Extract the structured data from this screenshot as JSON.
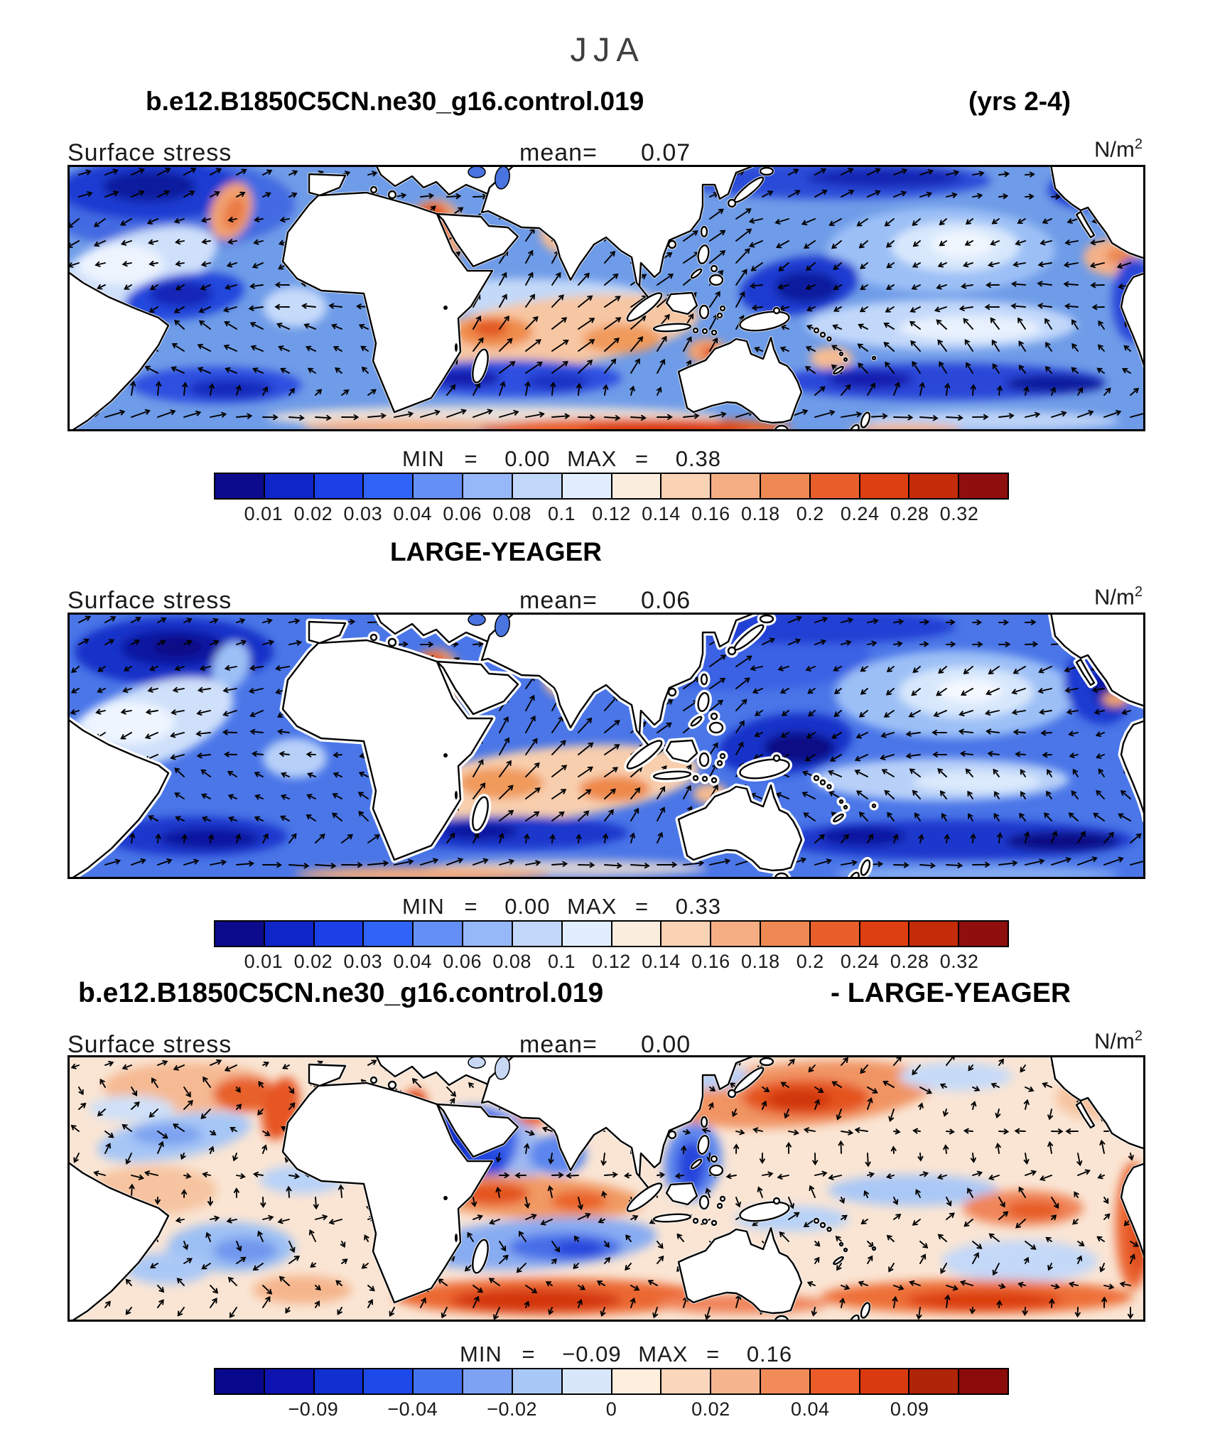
{
  "season": "JJA",
  "panels": [
    {
      "header_left": "b.e12.B1850C5CN.ne30_g16.control.019",
      "header_right": "(yrs 2-4)",
      "field": "Surface stress",
      "mean_label": "mean=",
      "mean_value": "0.07",
      "units_base": "N/m",
      "units_sup": "2",
      "min_label": "MIN",
      "eq1": "=",
      "min_value": "0.00",
      "max_label": "MAX",
      "eq2": "=",
      "max_value": "0.38",
      "colorbar": {
        "colors": [
          "#0b0b8b",
          "#0f25c8",
          "#1c40e8",
          "#3064f6",
          "#6490f6",
          "#96b8f8",
          "#c2d8fa",
          "#e2eefd",
          "#fceede",
          "#fad2b4",
          "#f5ae83",
          "#ef8953",
          "#e85f2c",
          "#de3f10",
          "#c42b08",
          "#8f0e0e"
        ],
        "labels": [
          "0.01",
          "0.02",
          "0.03",
          "0.04",
          "0.06",
          "0.08",
          "0.1",
          "0.12",
          "0.14",
          "0.16",
          "0.18",
          "0.2",
          "0.24",
          "0.28",
          "0.32"
        ]
      }
    },
    {
      "header_center": "LARGE-YEAGER",
      "field": "Surface stress",
      "mean_label": "mean=",
      "mean_value": "0.06",
      "units_base": "N/m",
      "units_sup": "2",
      "min_label": "MIN",
      "eq1": "=",
      "min_value": "0.00",
      "max_label": "MAX",
      "eq2": "=",
      "max_value": "0.33",
      "colorbar": {
        "colors": [
          "#0b0b8b",
          "#0f25c8",
          "#1c40e8",
          "#3064f6",
          "#6490f6",
          "#96b8f8",
          "#c2d8fa",
          "#e2eefd",
          "#fceede",
          "#fad2b4",
          "#f5ae83",
          "#ef8953",
          "#e85f2c",
          "#de3f10",
          "#c42b08",
          "#8f0e0e"
        ],
        "labels": [
          "0.01",
          "0.02",
          "0.03",
          "0.04",
          "0.06",
          "0.08",
          "0.1",
          "0.12",
          "0.14",
          "0.16",
          "0.18",
          "0.2",
          "0.24",
          "0.28",
          "0.32"
        ]
      }
    },
    {
      "header_left": "b.e12.B1850C5CN.ne30_g16.control.019",
      "header_right": "- LARGE-YEAGER",
      "field": "Surface stress",
      "mean_label": "mean=",
      "mean_value": "0.00",
      "units_base": "N/m",
      "units_sup": "2",
      "min_label": "MIN",
      "eq1": "=",
      "min_value": "−0.09",
      "max_label": "MAX",
      "eq2": "=",
      "max_value": "0.16",
      "colorbar": {
        "colors": [
          "#08088c",
          "#0f14b0",
          "#1030d0",
          "#1c49e8",
          "#4272ee",
          "#7da2f2",
          "#aac8f6",
          "#d8e8fa",
          "#fdeedd",
          "#f9d6bc",
          "#f6b58e",
          "#f28b5a",
          "#ec5c28",
          "#d93a10",
          "#b02408",
          "#8b0b0b"
        ],
        "labels": [
          "",
          "−0.09",
          "",
          "−0.04",
          "",
          "−0.02",
          "",
          "0",
          "",
          "0.02",
          "",
          "0.04",
          "",
          "0.09",
          ""
        ]
      }
    }
  ],
  "chart_data": [
    {
      "type": "heatmap",
      "title": "b.e12.B1850C5CN.ne30_g16.control.019 (yrs 2-4)",
      "season": "JJA",
      "variable": "Surface stress",
      "units": "N/m2",
      "mean": 0.07,
      "min": 0.0,
      "max": 0.38,
      "levels": [
        0.01,
        0.02,
        0.03,
        0.04,
        0.06,
        0.08,
        0.1,
        0.12,
        0.14,
        0.16,
        0.18,
        0.2,
        0.24,
        0.28,
        0.32
      ],
      "palette": [
        "#0b0b8b",
        "#0f25c8",
        "#1c40e8",
        "#3064f6",
        "#6490f6",
        "#96b8f8",
        "#c2d8fa",
        "#e2eefd",
        "#fceede",
        "#fad2b4",
        "#f5ae83",
        "#ef8953",
        "#e85f2c",
        "#de3f10",
        "#c42b08",
        "#8f0e0e"
      ],
      "overlay": "wind stress vectors",
      "notes": "global ocean map, strong maxima in Arabian Sea monsoon jet, southern Indian Ocean trades and Southern Ocean"
    },
    {
      "type": "heatmap",
      "title": "LARGE-YEAGER",
      "season": "JJA",
      "variable": "Surface stress",
      "units": "N/m2",
      "mean": 0.06,
      "min": 0.0,
      "max": 0.33,
      "levels": [
        0.01,
        0.02,
        0.03,
        0.04,
        0.06,
        0.08,
        0.1,
        0.12,
        0.14,
        0.16,
        0.18,
        0.2,
        0.24,
        0.28,
        0.32
      ],
      "palette": [
        "#0b0b8b",
        "#0f25c8",
        "#1c40e8",
        "#3064f6",
        "#6490f6",
        "#96b8f8",
        "#c2d8fa",
        "#e2eefd",
        "#fceede",
        "#fad2b4",
        "#f5ae83",
        "#ef8953",
        "#e85f2c",
        "#de3f10",
        "#c42b08",
        "#8f0e0e"
      ],
      "overlay": "wind stress vectors",
      "notes": "observational Large-Yeager climatology, white cells near coasts are missing data"
    },
    {
      "type": "heatmap",
      "title": "b.e12.B1850C5CN.ne30_g16.control.019 - LARGE-YEAGER",
      "season": "JJA",
      "variable": "Surface stress difference",
      "units": "N/m2",
      "mean": 0.0,
      "min": -0.09,
      "max": 0.16,
      "labeled_levels": [
        -0.09,
        -0.04,
        -0.02,
        0,
        0.02,
        0.04,
        0.09
      ],
      "palette": [
        "#08088c",
        "#0f14b0",
        "#1030d0",
        "#1c49e8",
        "#4272ee",
        "#7da2f2",
        "#aac8f6",
        "#d8e8fa",
        "#fdeedd",
        "#f9d6bc",
        "#f6b58e",
        "#f28b5a",
        "#ec5c28",
        "#d93a10",
        "#b02408",
        "#8b0b0b"
      ],
      "overlay": "difference vectors",
      "notes": "model minus observations; blue deficit around India/Bay of Bengal, red excess in North and South Pacific and Southern Ocean"
    }
  ]
}
